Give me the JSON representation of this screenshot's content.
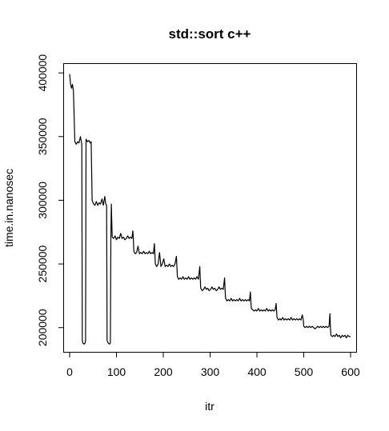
{
  "chart_data": {
    "type": "line",
    "title": "std::sort c++",
    "xlabel": "itr",
    "ylabel": "time.in.nanosec",
    "xlim": [
      -12,
      612
    ],
    "ylim": [
      181000,
      407000
    ],
    "xticks": [
      0,
      100,
      200,
      300,
      400,
      500,
      600
    ],
    "yticks": [
      200000,
      250000,
      300000,
      350000,
      400000
    ],
    "grid": false,
    "legend": "none",
    "line_color": "#000000",
    "series": [
      {
        "points": [
          [
            0,
            399000
          ],
          [
            2,
            391000
          ],
          [
            4,
            388000
          ],
          [
            6,
            391000
          ],
          [
            8,
            386000
          ],
          [
            10,
            360000
          ],
          [
            11,
            346000
          ],
          [
            14,
            344000
          ],
          [
            17,
            346000
          ],
          [
            20,
            345000
          ],
          [
            23,
            350000
          ],
          [
            25,
            346000
          ],
          [
            26,
            344000
          ],
          [
            27,
            190000
          ],
          [
            28,
            188000
          ],
          [
            31,
            187000
          ],
          [
            33,
            188000
          ],
          [
            34,
            190000
          ],
          [
            35,
            348000
          ],
          [
            38,
            346000
          ],
          [
            41,
            347000
          ],
          [
            44,
            345000
          ],
          [
            46,
            346000
          ],
          [
            48,
            300000
          ],
          [
            51,
            297000
          ],
          [
            54,
            296000
          ],
          [
            57,
            299000
          ],
          [
            60,
            296000
          ],
          [
            63,
            298000
          ],
          [
            66,
            297000
          ],
          [
            69,
            301000
          ],
          [
            72,
            296000
          ],
          [
            75,
            303000
          ],
          [
            77,
            297000
          ],
          [
            79,
            296000
          ],
          [
            80,
            190000
          ],
          [
            82,
            188000
          ],
          [
            85,
            187000
          ],
          [
            87,
            188000
          ],
          [
            88,
            270000
          ],
          [
            89,
            297000
          ],
          [
            90,
            282000
          ],
          [
            91,
            271000
          ],
          [
            94,
            270000
          ],
          [
            97,
            272000
          ],
          [
            100,
            269000
          ],
          [
            103,
            271000
          ],
          [
            106,
            270000
          ],
          [
            109,
            274000
          ],
          [
            112,
            270000
          ],
          [
            115,
            271000
          ],
          [
            118,
            269000
          ],
          [
            121,
            270000
          ],
          [
            124,
            272000
          ],
          [
            127,
            270000
          ],
          [
            130,
            271000
          ],
          [
            133,
            270000
          ],
          [
            135,
            276000
          ],
          [
            136,
            270000
          ],
          [
            137,
            260000
          ],
          [
            140,
            258000
          ],
          [
            143,
            259000
          ],
          [
            146,
            264000
          ],
          [
            149,
            258000
          ],
          [
            152,
            259000
          ],
          [
            155,
            258000
          ],
          [
            158,
            260000
          ],
          [
            161,
            258000
          ],
          [
            164,
            259000
          ],
          [
            167,
            258000
          ],
          [
            170,
            260000
          ],
          [
            173,
            258000
          ],
          [
            176,
            259000
          ],
          [
            179,
            258000
          ],
          [
            181,
            266000
          ],
          [
            182,
            258000
          ],
          [
            183,
            250000
          ],
          [
            186,
            248000
          ],
          [
            189,
            250000
          ],
          [
            192,
            259000
          ],
          [
            195,
            248000
          ],
          [
            198,
            250000
          ],
          [
            201,
            254000
          ],
          [
            204,
            248000
          ],
          [
            207,
            249000
          ],
          [
            210,
            248000
          ],
          [
            213,
            250000
          ],
          [
            216,
            248000
          ],
          [
            219,
            249000
          ],
          [
            222,
            248000
          ],
          [
            225,
            250000
          ],
          [
            228,
            256000
          ],
          [
            229,
            248000
          ],
          [
            230,
            240000
          ],
          [
            233,
            238000
          ],
          [
            236,
            239000
          ],
          [
            239,
            238000
          ],
          [
            242,
            240000
          ],
          [
            245,
            238000
          ],
          [
            248,
            239000
          ],
          [
            251,
            238000
          ],
          [
            254,
            240000
          ],
          [
            257,
            238000
          ],
          [
            260,
            239000
          ],
          [
            263,
            238000
          ],
          [
            266,
            239000
          ],
          [
            269,
            238000
          ],
          [
            272,
            240000
          ],
          [
            275,
            238000
          ],
          [
            278,
            248000
          ],
          [
            279,
            239000
          ],
          [
            280,
            231000
          ],
          [
            283,
            229000
          ],
          [
            286,
            230000
          ],
          [
            289,
            232000
          ],
          [
            292,
            230000
          ],
          [
            295,
            231000
          ],
          [
            298,
            229000
          ],
          [
            301,
            230000
          ],
          [
            304,
            232000
          ],
          [
            307,
            230000
          ],
          [
            310,
            231000
          ],
          [
            313,
            229000
          ],
          [
            316,
            230000
          ],
          [
            319,
            232000
          ],
          [
            322,
            230000
          ],
          [
            325,
            231000
          ],
          [
            328,
            230000
          ],
          [
            331,
            239000
          ],
          [
            332,
            230000
          ],
          [
            333,
            223000
          ],
          [
            336,
            221000
          ],
          [
            339,
            222000
          ],
          [
            342,
            221000
          ],
          [
            345,
            223000
          ],
          [
            348,
            221000
          ],
          [
            351,
            222000
          ],
          [
            354,
            221000
          ],
          [
            357,
            222000
          ],
          [
            360,
            221000
          ],
          [
            363,
            223000
          ],
          [
            366,
            221000
          ],
          [
            369,
            222000
          ],
          [
            372,
            221000
          ],
          [
            375,
            222000
          ],
          [
            378,
            221000
          ],
          [
            381,
            222000
          ],
          [
            384,
            221000
          ],
          [
            386,
            228000
          ],
          [
            387,
            221000
          ],
          [
            388,
            215000
          ],
          [
            391,
            214000
          ],
          [
            394,
            213000
          ],
          [
            397,
            214000
          ],
          [
            400,
            213000
          ],
          [
            403,
            215000
          ],
          [
            406,
            213000
          ],
          [
            409,
            214000
          ],
          [
            412,
            213000
          ],
          [
            415,
            214000
          ],
          [
            418,
            213000
          ],
          [
            421,
            215000
          ],
          [
            424,
            213000
          ],
          [
            427,
            214000
          ],
          [
            430,
            213000
          ],
          [
            433,
            214000
          ],
          [
            436,
            213000
          ],
          [
            439,
            214000
          ],
          [
            441,
            219000
          ],
          [
            442,
            213000
          ],
          [
            443,
            208000
          ],
          [
            446,
            206000
          ],
          [
            449,
            207000
          ],
          [
            452,
            206000
          ],
          [
            455,
            208000
          ],
          [
            458,
            206000
          ],
          [
            461,
            207000
          ],
          [
            464,
            206000
          ],
          [
            467,
            207000
          ],
          [
            470,
            206000
          ],
          [
            473,
            208000
          ],
          [
            476,
            206000
          ],
          [
            479,
            207000
          ],
          [
            482,
            206000
          ],
          [
            485,
            207000
          ],
          [
            488,
            206000
          ],
          [
            491,
            207000
          ],
          [
            494,
            206000
          ],
          [
            497,
            210000
          ],
          [
            499,
            206000
          ],
          [
            500,
            201000
          ],
          [
            503,
            200000
          ],
          [
            506,
            201000
          ],
          [
            509,
            200000
          ],
          [
            512,
            201000
          ],
          [
            515,
            200000
          ],
          [
            518,
            201000
          ],
          [
            521,
            200000
          ],
          [
            524,
            199000
          ],
          [
            527,
            200000
          ],
          [
            530,
            201000
          ],
          [
            533,
            200000
          ],
          [
            536,
            201000
          ],
          [
            539,
            200000
          ],
          [
            542,
            201000
          ],
          [
            545,
            200000
          ],
          [
            548,
            201000
          ],
          [
            551,
            200000
          ],
          [
            554,
            201000
          ],
          [
            556,
            211000
          ],
          [
            557,
            200000
          ],
          [
            558,
            194000
          ],
          [
            561,
            193000
          ],
          [
            564,
            194000
          ],
          [
            567,
            193000
          ],
          [
            570,
            195000
          ],
          [
            573,
            193000
          ],
          [
            576,
            194000
          ],
          [
            579,
            192000
          ],
          [
            582,
            194000
          ],
          [
            585,
            193000
          ],
          [
            588,
            194000
          ],
          [
            591,
            192000
          ],
          [
            594,
            194000
          ],
          [
            597,
            193000
          ],
          [
            600,
            193000
          ]
        ]
      }
    ]
  }
}
